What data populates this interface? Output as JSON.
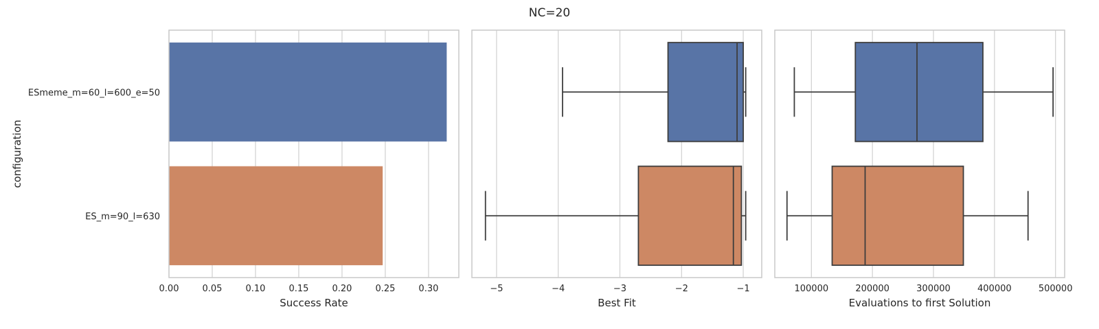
{
  "figure": {
    "suptitle": "NC=20"
  },
  "colors": {
    "series_blue": "#5874a6",
    "series_orange": "#cd8864",
    "line": "#3d3d3d",
    "grid": "#d0d0d0",
    "spine": "#c8c8c8"
  },
  "chart_data": [
    {
      "type": "bar",
      "orientation": "horizontal",
      "categories": [
        "ESmeme_m=60_l=600_e=50",
        "ES_m=90_l=630"
      ],
      "values": [
        0.321,
        0.247
      ],
      "xlabel": "Success Rate",
      "ylabel": "configuration",
      "xlim": [
        0.0,
        0.335
      ],
      "xticks": [
        0.0,
        0.05,
        0.1,
        0.15,
        0.2,
        0.25,
        0.3
      ],
      "xtick_labels": [
        "0.00",
        "0.05",
        "0.10",
        "0.15",
        "0.20",
        "0.25",
        "0.30"
      ],
      "grid": true
    },
    {
      "type": "box",
      "orientation": "horizontal",
      "categories": [
        "ESmeme_m=60_l=600_e=50",
        "ES_m=90_l=630"
      ],
      "boxes": [
        {
          "whislo": -3.93,
          "q1": -2.22,
          "med": -1.1,
          "q3": -1.0,
          "whishi": -0.96
        },
        {
          "whislo": -5.18,
          "q1": -2.7,
          "med": -1.16,
          "q3": -1.03,
          "whishi": -0.96
        }
      ],
      "xlabel": "Best Fit",
      "xlim": [
        -5.4,
        -0.7
      ],
      "xticks": [
        -5,
        -4,
        -3,
        -2,
        -1
      ],
      "xtick_labels": [
        "−5",
        "−4",
        "−3",
        "−2",
        "−1"
      ],
      "grid": true
    },
    {
      "type": "box",
      "orientation": "horizontal",
      "categories": [
        "ESmeme_m=60_l=600_e=50",
        "ES_m=90_l=630"
      ],
      "boxes": [
        {
          "whislo": 72000,
          "q1": 172000,
          "med": 273000,
          "q3": 381000,
          "whishi": 496000
        },
        {
          "whislo": 60000,
          "q1": 134000,
          "med": 188000,
          "q3": 349000,
          "whishi": 455000
        }
      ],
      "xlabel": "Evaluations to first Solution",
      "xlim": [
        40000,
        515000
      ],
      "xticks": [
        100000,
        200000,
        300000,
        400000,
        500000
      ],
      "xtick_labels": [
        "100000",
        "200000",
        "300000",
        "400000",
        "500000"
      ],
      "grid": true
    }
  ]
}
